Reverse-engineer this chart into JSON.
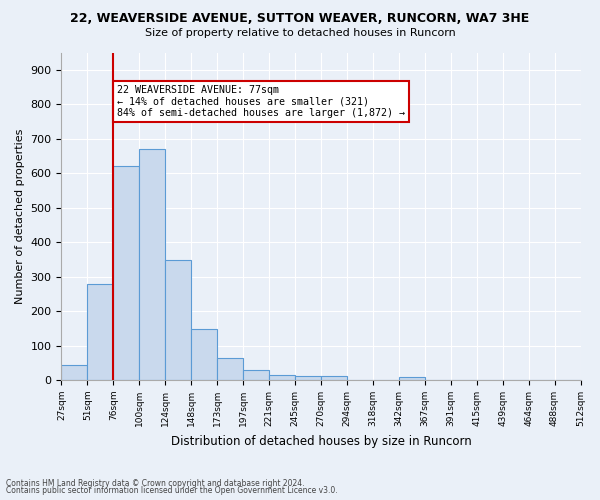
{
  "title1": "22, WEAVERSIDE AVENUE, SUTTON WEAVER, RUNCORN, WA7 3HE",
  "title2": "Size of property relative to detached houses in Runcorn",
  "xlabel": "Distribution of detached houses by size in Runcorn",
  "ylabel": "Number of detached properties",
  "bar_values": [
    43,
    278,
    621,
    670,
    348,
    148,
    65,
    30,
    16,
    12,
    12,
    0,
    0,
    9,
    0,
    0,
    0,
    0,
    0,
    0
  ],
  "bar_labels": [
    "27sqm",
    "51sqm",
    "76sqm",
    "100sqm",
    "124sqm",
    "148sqm",
    "173sqm",
    "197sqm",
    "221sqm",
    "245sqm",
    "270sqm",
    "294sqm",
    "318sqm",
    "342sqm",
    "367sqm",
    "391sqm",
    "415sqm",
    "439sqm",
    "464sqm",
    "488sqm",
    "512sqm"
  ],
  "bar_color": "#c9d9ed",
  "bar_edge_color": "#5b9bd5",
  "vline_x": 2,
  "vline_color": "#cc0000",
  "annotation_line1": "22 WEAVERSIDE AVENUE: 77sqm",
  "annotation_line2": "← 14% of detached houses are smaller (321)",
  "annotation_line3": "84% of semi-detached houses are larger (1,872) →",
  "annotation_box_color": "#cc0000",
  "annotation_box_bg": "#ffffff",
  "ylim": [
    0,
    950
  ],
  "yticks": [
    0,
    100,
    200,
    300,
    400,
    500,
    600,
    700,
    800,
    900
  ],
  "footer1": "Contains HM Land Registry data © Crown copyright and database right 2024.",
  "footer2": "Contains public sector information licensed under the Open Government Licence v3.0.",
  "bg_color": "#eaf0f8",
  "plot_bg_color": "#eaf0f8",
  "grid_color": "#ffffff"
}
